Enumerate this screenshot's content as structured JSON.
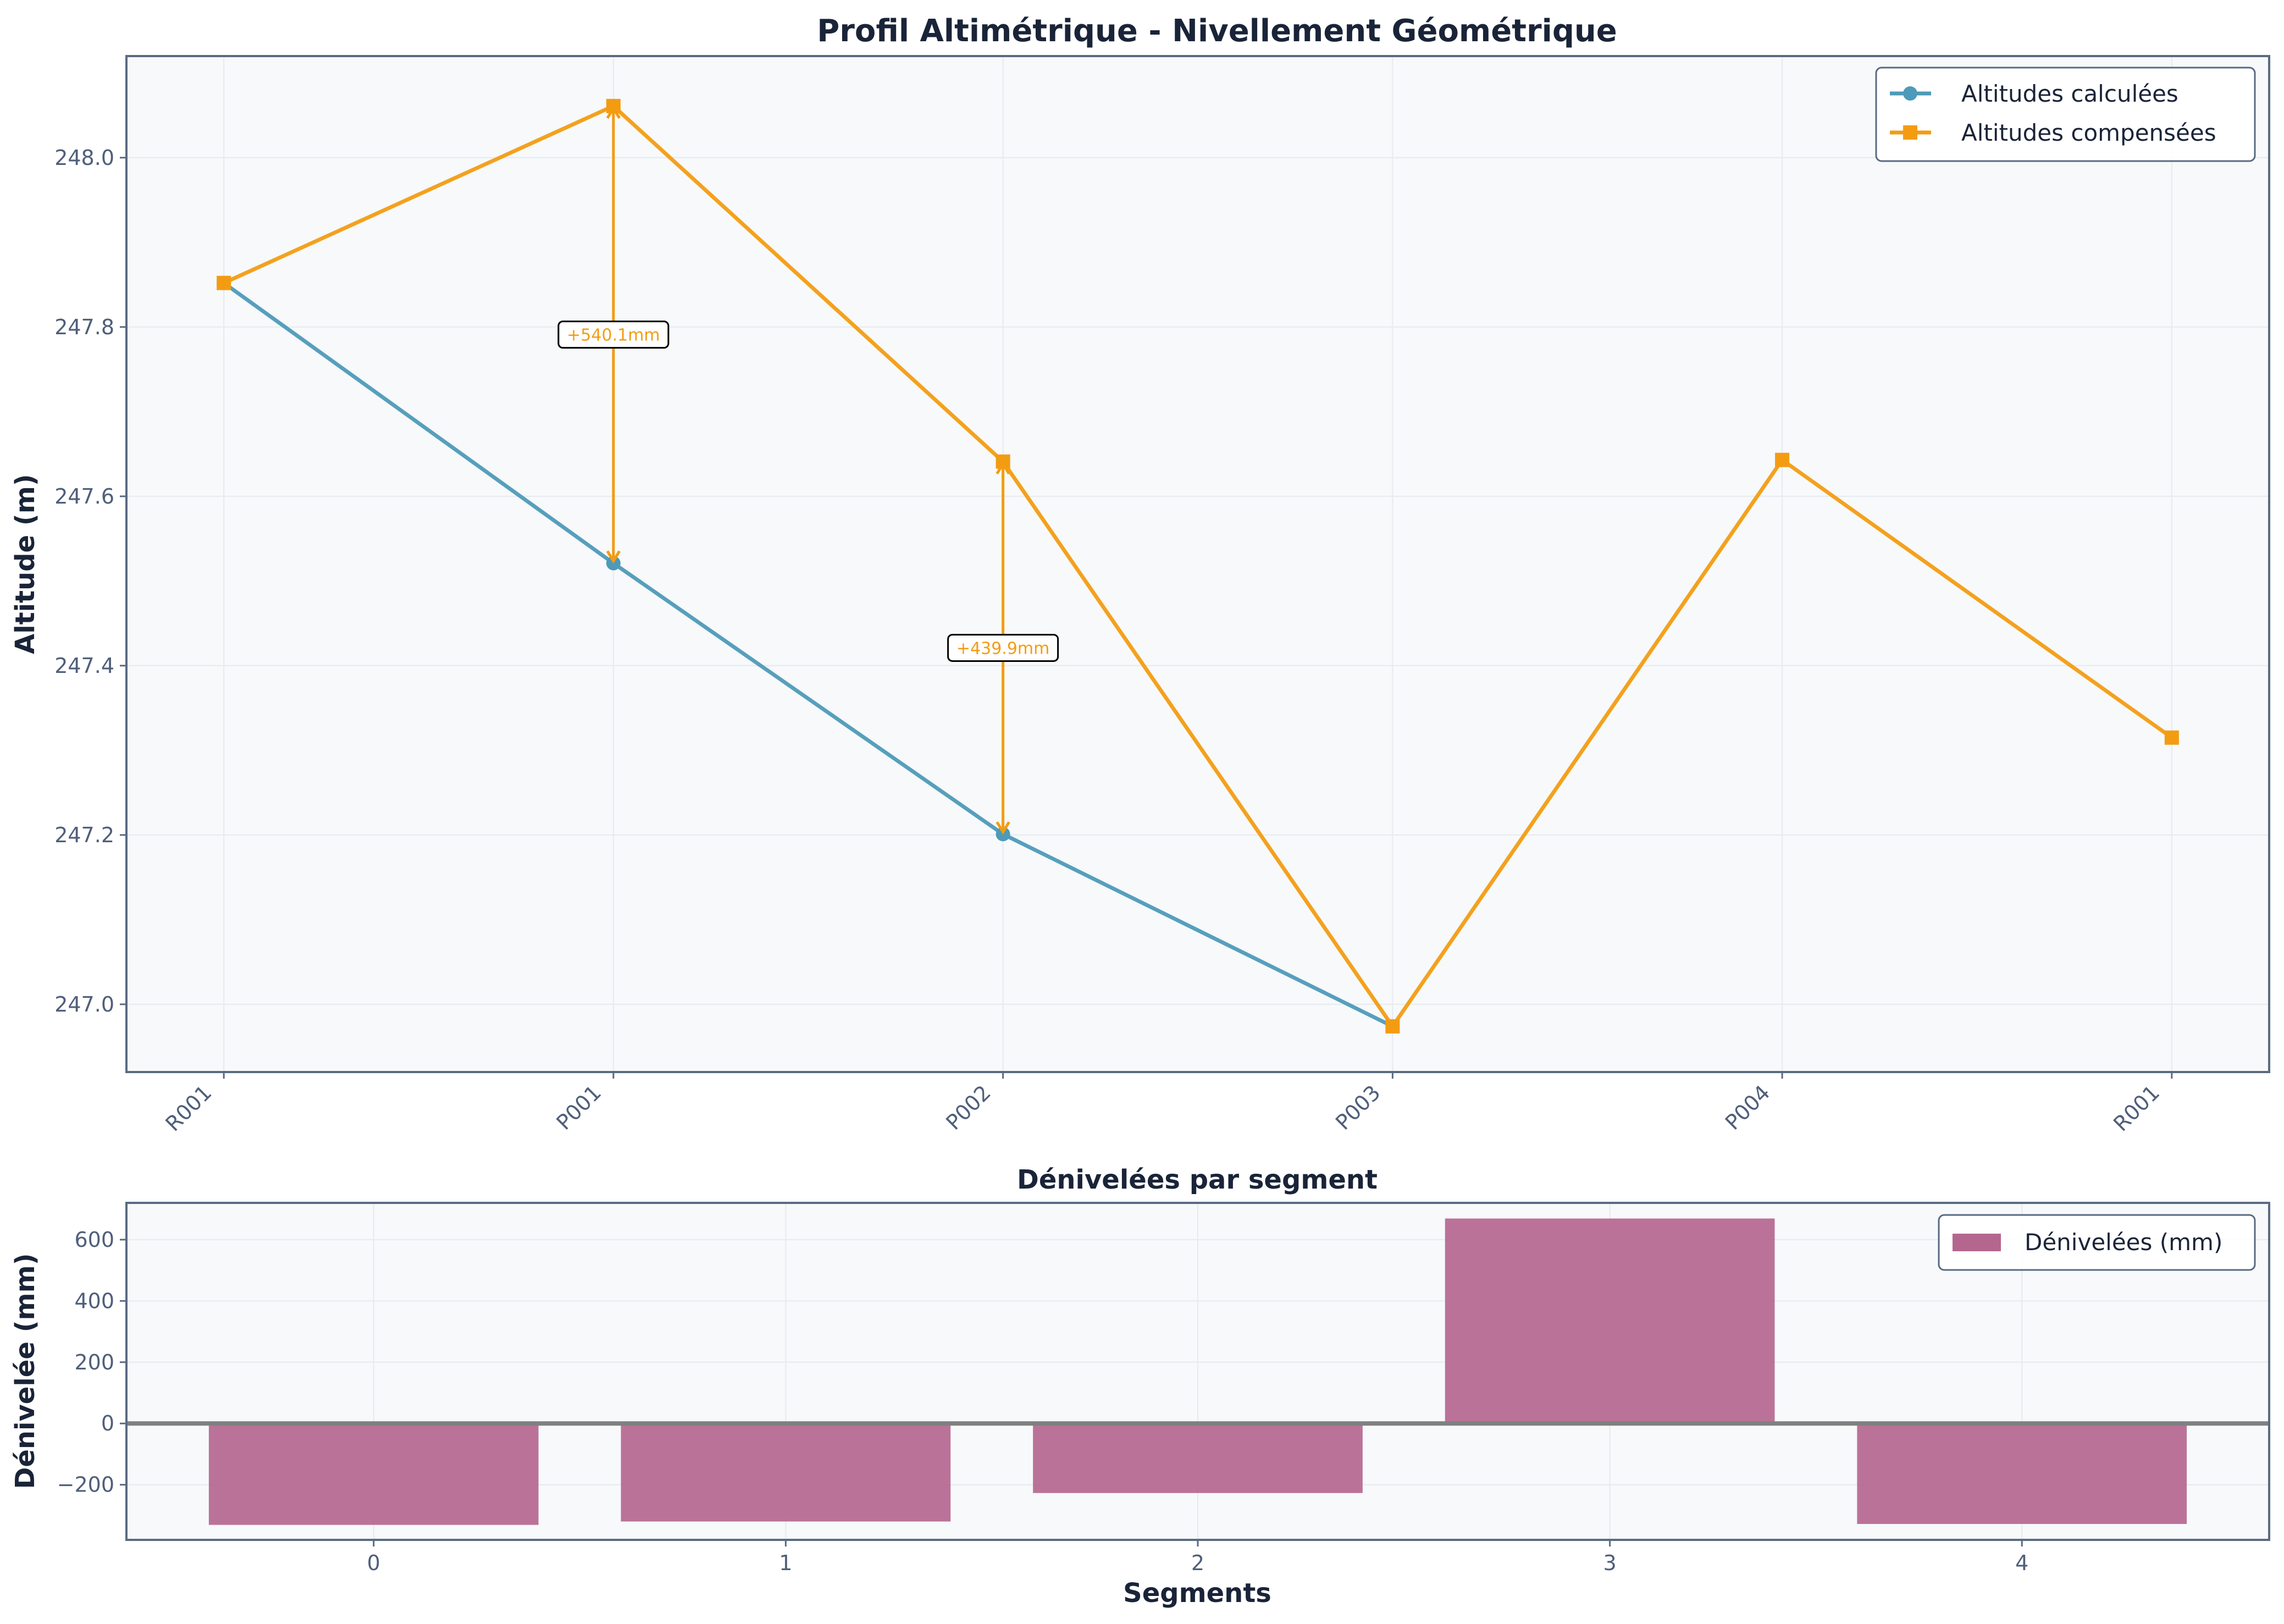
{
  "colors": {
    "calc": "#4e9ab8",
    "comp": "#f39c12",
    "bar": "#b5668f",
    "plot_bg": "#f7f9fb",
    "frame": "#5a6a82",
    "grid": "#e6ebf0",
    "zero_line": "#808080"
  },
  "chart_data": [
    {
      "type": "line",
      "title": "Profil Altimétrique - Nivellement Géométrique",
      "xlabel": "",
      "ylabel": "Altitude (m)",
      "categories": [
        "R001",
        "P001",
        "P002",
        "P003",
        "P004",
        "R001"
      ],
      "ylim": [
        246.92,
        248.12
      ],
      "yticks": [
        "247.0",
        "247.2",
        "247.4",
        "247.6",
        "247.8",
        "248.0"
      ],
      "grid": true,
      "legend_position": "top-right",
      "series": [
        {
          "name": "Altitudes calculées",
          "marker": "circle",
          "values": [
            247.852,
            247.521,
            247.201,
            246.974,
            null,
            null
          ]
        },
        {
          "name": "Altitudes compensées",
          "marker": "square",
          "values": [
            247.852,
            248.061,
            247.641,
            246.974,
            247.643,
            247.315
          ]
        }
      ],
      "annotations": [
        {
          "category_index": 1,
          "label": "+540.1mm"
        },
        {
          "category_index": 2,
          "label": "+439.9mm"
        }
      ]
    },
    {
      "type": "bar",
      "title": "Dénivelées par segment",
      "xlabel": "Segments",
      "ylabel": "Dénivelée (mm)",
      "categories": [
        "0",
        "1",
        "2",
        "3",
        "4"
      ],
      "ylim": [
        -380,
        720
      ],
      "yticks": [
        "−200",
        "0",
        "200",
        "400",
        "600"
      ],
      "grid": true,
      "legend_position": "top-right",
      "series": [
        {
          "name": "Dénivelées (mm)",
          "values": [
            -331,
            -320,
            -227,
            669,
            -328
          ]
        }
      ]
    }
  ]
}
